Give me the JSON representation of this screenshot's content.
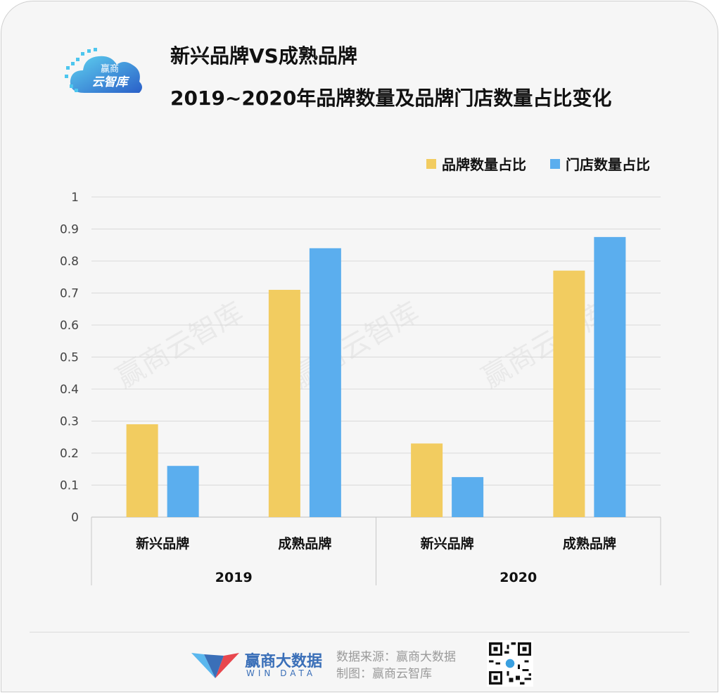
{
  "header": {
    "logo_text_top": "赢商",
    "logo_text_bottom": "云智库",
    "title_line1": "新兴品牌VS成熟品牌",
    "title_line2": "2019~2020年品牌数量及品牌门店数量占比变化"
  },
  "chart_data": {
    "type": "bar",
    "groups": [
      {
        "label": "2019",
        "categories": [
          "新兴品牌",
          "成熟品牌"
        ]
      },
      {
        "label": "2020",
        "categories": [
          "新兴品牌",
          "成熟品牌"
        ]
      }
    ],
    "series": [
      {
        "name": "品牌数量占比",
        "color": "#F2CC60",
        "values": [
          0.29,
          0.71,
          0.23,
          0.77
        ]
      },
      {
        "name": "门店数量占比",
        "color": "#5BAEEE",
        "values": [
          0.16,
          0.84,
          0.125,
          0.875
        ]
      }
    ],
    "y_ticks": [
      "0",
      "0.1",
      "0.2",
      "0.3",
      "0.4",
      "0.5",
      "0.6",
      "0.7",
      "0.8",
      "0.9",
      "1"
    ],
    "ylim": [
      0,
      1
    ],
    "grid": true,
    "legend_position": "top-right",
    "watermark": "赢商云智库"
  },
  "footer": {
    "brand_cn": "赢商大数据",
    "brand_en": "WIN DATA",
    "source_line": "数据来源：赢商大数据",
    "credit_line": "制图：赢商云智库"
  }
}
